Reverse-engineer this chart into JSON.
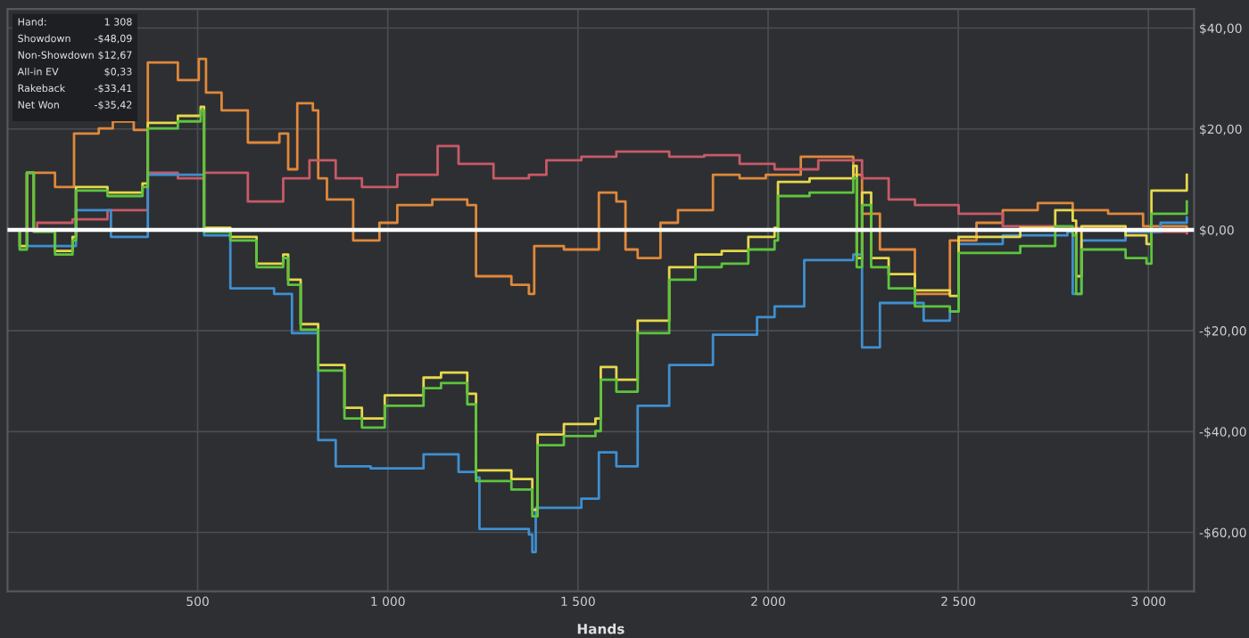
{
  "chart_data": {
    "type": "step",
    "xlabel": "Hands",
    "xlim": [
      0,
      3120
    ],
    "ylim": [
      -71.7,
      43.8
    ],
    "xticks": [
      {
        "value": 500,
        "label": "500"
      },
      {
        "value": 1000,
        "label": "1 000"
      },
      {
        "value": 1500,
        "label": "1 500"
      },
      {
        "value": 2000,
        "label": "2 000"
      },
      {
        "value": 2500,
        "label": "2 500"
      },
      {
        "value": 3000,
        "label": "3 000"
      }
    ],
    "yticks": [
      {
        "value": -60,
        "label": "-$60,00"
      },
      {
        "value": -40,
        "label": "-$40,00"
      },
      {
        "value": -20,
        "label": "-$20,00"
      },
      {
        "value": 0,
        "label": "$0,00"
      },
      {
        "value": 20,
        "label": "$20,00"
      },
      {
        "value": 40,
        "label": "$40,00"
      }
    ],
    "grid": true,
    "legend": false,
    "ref_lines": [
      {
        "axis": "y",
        "value": 0,
        "color": "#ffffff"
      }
    ],
    "annotations": [
      "Hand:",
      "1 308",
      "Showdown",
      "-$48,09",
      "Non-Showdown",
      "$12,67",
      "All-in EV",
      "$0,33",
      "Rakeback",
      "-$33,41",
      "Net Won",
      "-$35,42"
    ],
    "series": [
      {
        "color": "#e0883a",
        "x": [
          0,
          51,
          125,
          175,
          240,
          277,
          332,
          369,
          448,
          503,
          522,
          563,
          632,
          715,
          738,
          762,
          803,
          817,
          840,
          909,
          978,
          1025,
          1117,
          1209,
          1232,
          1325,
          1371,
          1385,
          1463,
          1555,
          1601,
          1625,
          1657,
          1717,
          1763,
          1855,
          1925,
          1994,
          2086,
          2224,
          2247,
          2294,
          2386,
          2478,
          2548,
          2617,
          2709,
          2801,
          2894,
          2986,
          3101
        ],
        "values": [
          0,
          11.3,
          8.5,
          19.1,
          20.1,
          21.5,
          19.8,
          33.2,
          29.7,
          33.9,
          27.2,
          23.7,
          17.3,
          19.1,
          12.0,
          25.1,
          23.7,
          10.2,
          6.0,
          -2.1,
          1.4,
          4.9,
          6.0,
          4.9,
          -9.2,
          -10.9,
          -12.7,
          -3.2,
          -3.9,
          7.4,
          5.6,
          -3.9,
          -5.6,
          1.4,
          3.9,
          10.9,
          10.2,
          10.9,
          14.5,
          10.9,
          3.2,
          -3.9,
          -12.7,
          -2.1,
          1.4,
          3.9,
          5.3,
          3.9,
          3.2,
          0.7,
          -0.4
        ]
      },
      {
        "color": "#c85a66",
        "x": [
          0,
          78,
          171,
          263,
          369,
          448,
          517,
          632,
          725,
          794,
          863,
          932,
          1025,
          1131,
          1186,
          1278,
          1371,
          1417,
          1509,
          1601,
          1740,
          1832,
          1925,
          2017,
          2132,
          2247,
          2317,
          2386,
          2501,
          2617,
          2755,
          2940,
          3101
        ],
        "values": [
          0,
          1.4,
          2.1,
          3.9,
          11.3,
          10.2,
          11.3,
          5.6,
          10.2,
          13.8,
          10.2,
          8.5,
          10.9,
          16.6,
          13.1,
          10.2,
          10.9,
          13.8,
          14.5,
          15.5,
          14.5,
          14.8,
          13.1,
          12.0,
          13.8,
          10.2,
          6.0,
          4.9,
          3.2,
          0.7,
          0.4,
          -0.4,
          -0.7
        ]
      },
      {
        "color": "#3f8fd0",
        "x": [
          0,
          51,
          171,
          180,
          272,
          369,
          517,
          586,
          701,
          748,
          817,
          863,
          955,
          1094,
          1186,
          1232,
          1241,
          1371,
          1380,
          1389,
          1509,
          1555,
          1601,
          1657,
          1740,
          1855,
          1971,
          2017,
          2095,
          2224,
          2247,
          2294,
          2409,
          2478,
          2501,
          2617,
          2787,
          2801,
          2824,
          2940,
          3032,
          3101
        ],
        "values": [
          0,
          -3.2,
          -3.2,
          3.9,
          -1.4,
          10.9,
          -1.1,
          -11.6,
          -12.7,
          -20.5,
          -41.7,
          -46.9,
          -47.3,
          -44.5,
          -48.0,
          -49.1,
          -59.3,
          -60.4,
          -63.9,
          -55.1,
          -53.3,
          -44.1,
          -46.9,
          -34.9,
          -26.8,
          -20.8,
          -17.3,
          -15.2,
          -6.0,
          -4.9,
          -23.3,
          -14.5,
          -18.0,
          -16.2,
          -2.8,
          -1.1,
          -0.4,
          -12.7,
          -2.1,
          -0.4,
          1.4,
          2.5
        ]
      },
      {
        "color": "#e6d84a",
        "x": [
          0,
          32,
          51,
          69,
          125,
          171,
          180,
          263,
          355,
          369,
          448,
          508,
          517,
          586,
          655,
          725,
          738,
          771,
          817,
          886,
          932,
          992,
          1094,
          1140,
          1209,
          1232,
          1325,
          1380,
          1394,
          1463,
          1546,
          1560,
          1601,
          1657,
          1740,
          1809,
          1878,
          1948,
          2017,
          2026,
          2109,
          2224,
          2233,
          2247,
          2271,
          2317,
          2386,
          2478,
          2501,
          2663,
          2755,
          2801,
          2810,
          2824,
          2940,
          2995,
          3008,
          3101
        ],
        "values": [
          0,
          -3.2,
          11.3,
          0,
          -4.2,
          -1.4,
          8.5,
          7.4,
          9.2,
          21.2,
          22.6,
          24.4,
          0.4,
          -1.4,
          -6.7,
          -4.9,
          -9.9,
          -18.7,
          -26.8,
          -35.3,
          -37.4,
          -32.8,
          -29.3,
          -28.3,
          -32.5,
          -47.7,
          -49.4,
          -55.5,
          -40.6,
          -38.5,
          -37.4,
          -27.2,
          -29.7,
          -18.0,
          -7.4,
          -4.9,
          -4.2,
          -1.4,
          0.4,
          9.5,
          10.2,
          12.7,
          -5.6,
          7.4,
          -5.6,
          -8.8,
          -12.0,
          -13.1,
          -1.4,
          0.4,
          3.9,
          1.8,
          -9.2,
          0.7,
          -1.1,
          -2.8,
          7.8,
          10.9
        ]
      },
      {
        "color": "#5ec43c",
        "x": [
          0,
          32,
          51,
          69,
          125,
          171,
          180,
          263,
          355,
          369,
          448,
          508,
          517,
          586,
          655,
          725,
          738,
          771,
          817,
          886,
          932,
          992,
          1094,
          1140,
          1209,
          1232,
          1325,
          1380,
          1394,
          1463,
          1546,
          1560,
          1601,
          1657,
          1740,
          1809,
          1878,
          1948,
          2017,
          2026,
          2109,
          2224,
          2233,
          2247,
          2271,
          2317,
          2386,
          2478,
          2501,
          2663,
          2755,
          2801,
          2810,
          2824,
          2940,
          2995,
          3008,
          3101
        ],
        "values": [
          0,
          -3.9,
          11.3,
          -0.4,
          -4.9,
          -2.1,
          7.8,
          6.7,
          8.5,
          20.1,
          21.5,
          23.7,
          -0.4,
          -2.1,
          -7.4,
          -5.6,
          -10.9,
          -19.8,
          -27.9,
          -37.4,
          -39.2,
          -34.9,
          -31.4,
          -30.4,
          -34.6,
          -49.8,
          -51.5,
          -56.8,
          -42.7,
          -40.9,
          -39.9,
          -29.7,
          -32.1,
          -20.5,
          -9.9,
          -7.4,
          -6.7,
          -3.9,
          -2.1,
          6.7,
          7.4,
          10.2,
          -7.4,
          4.9,
          -7.4,
          -11.6,
          -15.2,
          -16.2,
          -4.6,
          -3.2,
          0.7,
          -1.1,
          -12.7,
          -3.9,
          -5.6,
          -6.7,
          3.2,
          5.6
        ]
      }
    ]
  }
}
